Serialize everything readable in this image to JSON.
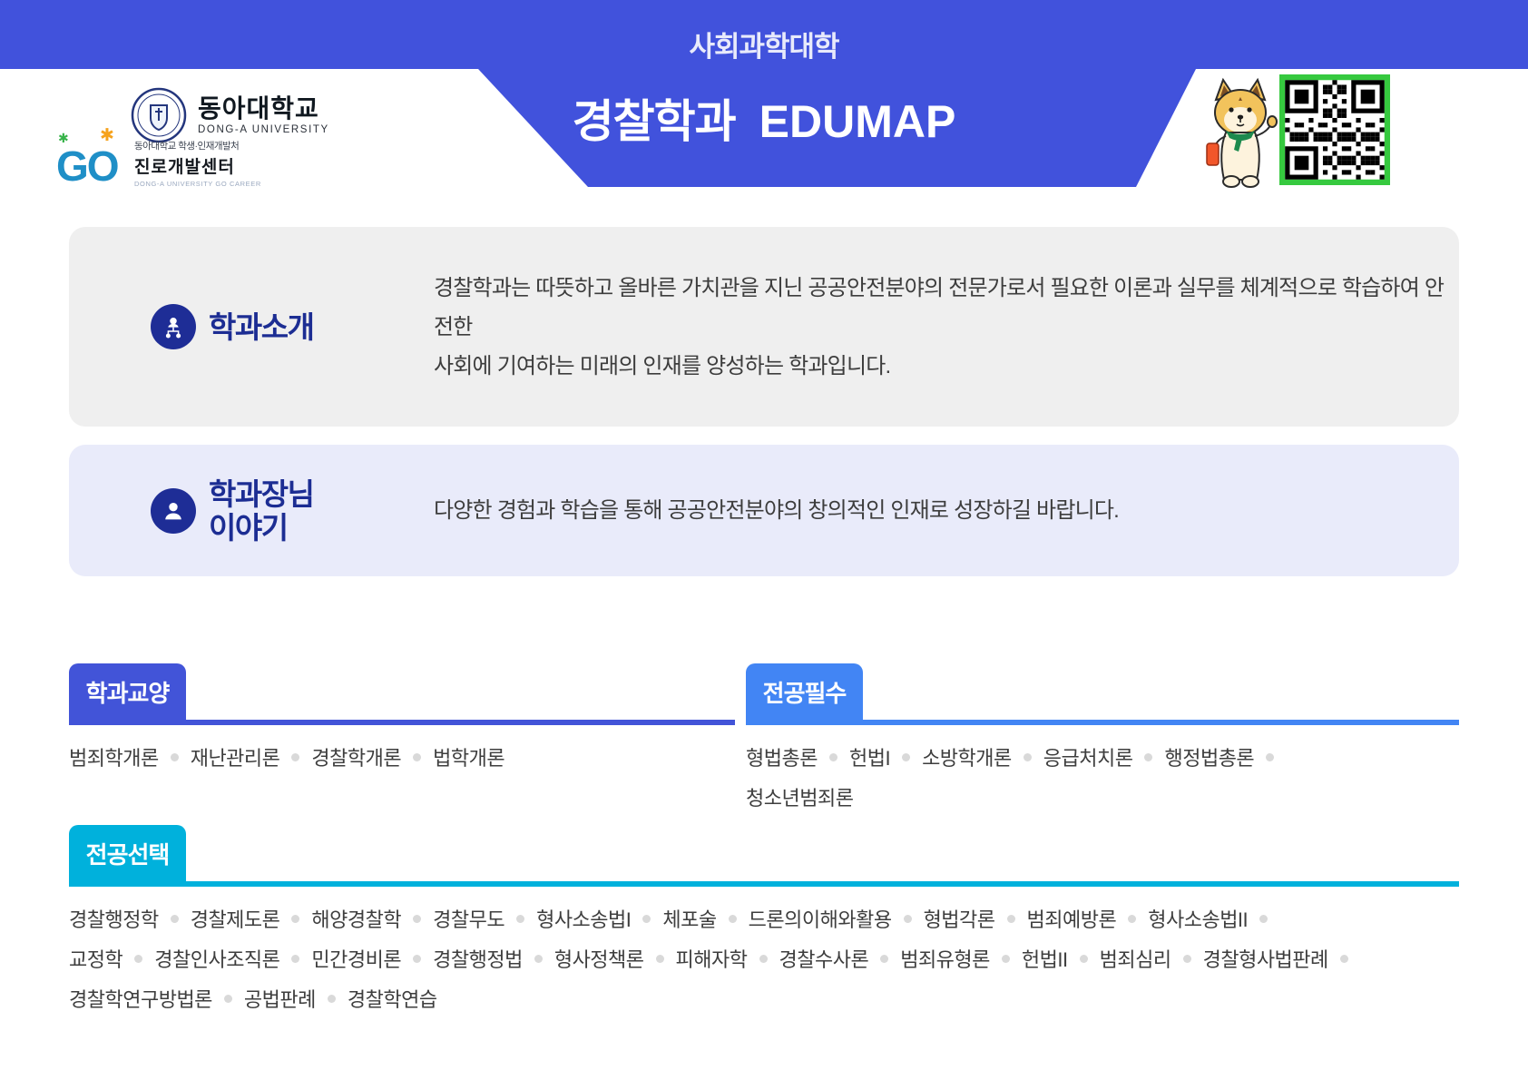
{
  "header": {
    "college": "사회과학대학",
    "title_ko": "경찰학과",
    "title_en": "EDUMAP",
    "university_logo": {
      "name_ko": "동아대학교",
      "name_en": "DONG-A UNIVERSITY",
      "emblem_icon": "university-emblem-icon"
    },
    "career_center_logo": {
      "go": "GO",
      "line1": "동아대학교 학생·인재개발처",
      "line2": "진로개발센터",
      "line3": "DONG-A UNIVERSITY GO CAREER",
      "spark_green": "✱",
      "spark_orange": "✱"
    },
    "mascot_icon": "dog-mascot-icon",
    "qr_icon": "qr-code-icon"
  },
  "intro": {
    "icon": "org-people-icon",
    "heading": "학과소개",
    "lines": [
      "경찰학과는 따뜻하고 올바른 가치관을 지닌 공공안전분야의 전문가로서 필요한 이론과 실무를 체계적으로 학습하여 안전한",
      "사회에 기여하는 미래의 인재를 양성하는 학과입니다."
    ]
  },
  "dean": {
    "icon": "person-icon",
    "heading_lines": [
      "학과장님",
      "이야기"
    ],
    "text": "다양한 경험과 학습을 통해 공공안전분야의 창의적인 인재로 성장하길 바랍니다."
  },
  "course_sections": [
    {
      "id": "liberal",
      "label": "학과교양",
      "accent_color": "#4254d8",
      "rows": [
        {
          "items": [
            "범죄학개론",
            "재난관리론",
            "경찰학개론",
            "법학개론"
          ],
          "trailing": false
        }
      ]
    },
    {
      "id": "required",
      "label": "전공필수",
      "accent_color": "#4285f4",
      "rows": [
        {
          "items": [
            "형법총론",
            "헌법I",
            "소방학개론",
            "응급처치론",
            "행정법총론"
          ],
          "trailing": true
        },
        {
          "items": [
            "청소년범죄론"
          ],
          "trailing": false
        }
      ]
    },
    {
      "id": "elective",
      "label": "전공선택",
      "accent_color": "#00b1dc",
      "rows": [
        {
          "items": [
            "경찰행정학",
            "경찰제도론",
            "해양경찰학",
            "경찰무도",
            "형사소송법I",
            "체포술",
            "드론의이해와활용",
            "형법각론",
            "범죄예방론",
            "형사소송법II"
          ],
          "trailing": true
        },
        {
          "items": [
            "교정학",
            "경찰인사조직론",
            "민간경비론",
            "경찰행정법",
            "형사정책론",
            "피해자학",
            "경찰수사론",
            "범죄유형론",
            "헌법II",
            "범죄심리",
            "경찰형사법판례"
          ],
          "trailing": true
        },
        {
          "items": [
            "경찰학연구방법론",
            "공법판례",
            "경찰학연습"
          ],
          "trailing": false
        }
      ]
    }
  ],
  "colors": {
    "header_blue": "#4152dc",
    "badge_navy": "#1e2d96",
    "heading_navy": "#1c2d93",
    "intro_box_gray": "#efefef",
    "dean_box_lavender": "#e9ebfa",
    "qr_border_green": "#36c93f",
    "dot_gray": "#d9d9d9"
  }
}
